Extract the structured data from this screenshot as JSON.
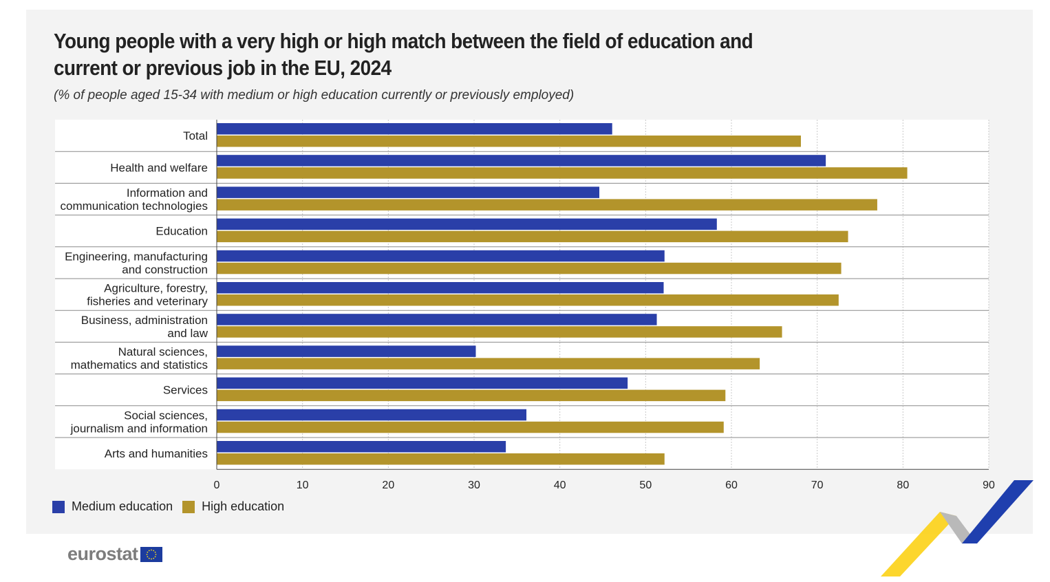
{
  "title": "Young people with a very high or high match between the field of education and current or previous job in the EU, 2024",
  "subtitle": "(% of people aged 15-34 with medium or high education currently or previously employed)",
  "brand": {
    "name": "eurostat",
    "flag_color": "#1c3c9e",
    "star_color": "#ffde17"
  },
  "chart_data": {
    "type": "bar",
    "orientation": "horizontal",
    "categories": [
      "Total",
      "Health and welfare",
      "Information and communication technologies",
      "Education",
      "Engineering, manufacturing and construction",
      "Agriculture, forestry, fisheries and veterinary",
      "Business, administration and law",
      "Natural sciences, mathematics and statistics",
      "Services",
      "Social sciences, journalism and information",
      "Arts and humanities"
    ],
    "category_lines": [
      [
        "Total"
      ],
      [
        "Health and welfare"
      ],
      [
        "Information and",
        "communication technologies"
      ],
      [
        "Education"
      ],
      [
        "Engineering, manufacturing",
        "and construction"
      ],
      [
        "Agriculture, forestry,",
        "fisheries and veterinary"
      ],
      [
        "Business, administration",
        "and law"
      ],
      [
        "Natural sciences,",
        "mathematics and statistics"
      ],
      [
        "Services"
      ],
      [
        "Social sciences,",
        "journalism and information"
      ],
      [
        "Arts and humanities"
      ]
    ],
    "series": [
      {
        "name": "Medium education",
        "color": "#2a3fa8",
        "values": [
          46.1,
          71.0,
          44.6,
          58.3,
          52.2,
          52.1,
          51.3,
          30.2,
          47.9,
          36.1,
          33.7
        ]
      },
      {
        "name": "High education",
        "color": "#b3942b",
        "values": [
          68.1,
          80.5,
          77.0,
          73.6,
          72.8,
          72.5,
          65.9,
          63.3,
          59.3,
          59.1,
          52.2
        ]
      }
    ],
    "xlim": [
      0,
      90
    ],
    "xticks": [
      0,
      10,
      20,
      30,
      40,
      50,
      60,
      70,
      80,
      90
    ],
    "grid": true,
    "legend": "bottom-left",
    "xlabel": "",
    "ylabel": ""
  }
}
